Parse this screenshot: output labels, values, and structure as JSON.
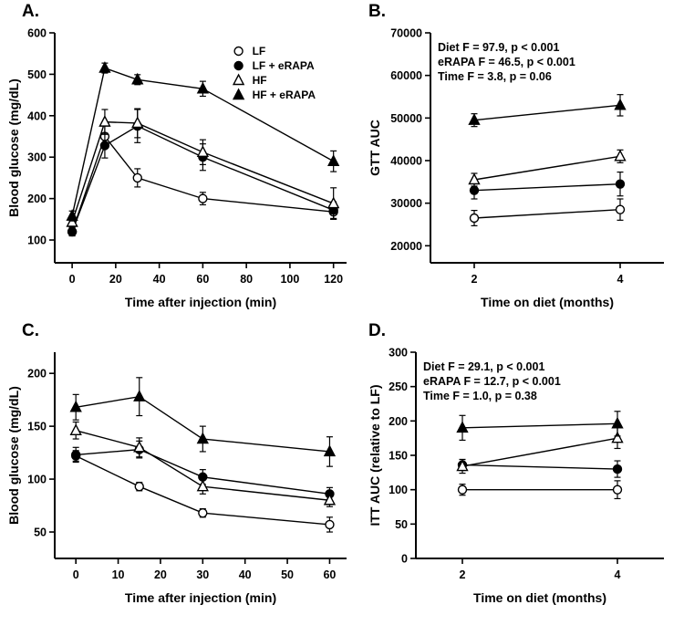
{
  "colors": {
    "foreground": "#000000",
    "background": "#ffffff"
  },
  "panel_labels": {
    "A": "A.",
    "B": "B.",
    "C": "C.",
    "D": "D."
  },
  "chart_data": [
    {
      "id": "A",
      "type": "line",
      "title": "",
      "xlabel": "Time after injection (min)",
      "ylabel": "Blood glucose (mg/dL)",
      "xlim": [
        -8,
        126
      ],
      "ylim": [
        45,
        600
      ],
      "xticks": [
        0,
        20,
        40,
        60,
        80,
        100,
        120
      ],
      "yticks": [
        100,
        200,
        300,
        400,
        500,
        600
      ],
      "grid": false,
      "legend": true,
      "legend_position": "top-right",
      "x": [
        0,
        15,
        30,
        60,
        120
      ],
      "series": [
        {
          "name": "LF",
          "marker": "circle-open",
          "values": [
            120,
            350,
            250,
            200,
            168
          ],
          "errors": [
            10,
            28,
            22,
            15,
            18
          ]
        },
        {
          "name": "LF + eRAPA",
          "marker": "circle-filled",
          "values": [
            120,
            328,
            375,
            300,
            172
          ],
          "errors": [
            10,
            30,
            40,
            32,
            20
          ]
        },
        {
          "name": "HF",
          "marker": "triangle-open",
          "values": [
            143,
            385,
            382,
            312,
            188
          ],
          "errors": [
            12,
            30,
            35,
            30,
            38
          ]
        },
        {
          "name": "HF + eRAPA",
          "marker": "triangle-filled",
          "values": [
            158,
            515,
            487,
            465,
            290
          ],
          "errors": [
            12,
            12,
            12,
            18,
            25
          ]
        }
      ]
    },
    {
      "id": "B",
      "type": "line",
      "title": "",
      "xlabel": "Time on diet (months)",
      "ylabel": "GTT AUC",
      "xlim": [
        1.4,
        4.6
      ],
      "ylim": [
        16000,
        70000
      ],
      "xticks": [
        2,
        4
      ],
      "yticks": [
        20000,
        30000,
        40000,
        50000,
        60000,
        70000
      ],
      "grid": false,
      "legend": false,
      "annotation": [
        "Diet F = 97.9, p < 0.001",
        "eRAPA F = 46.5, p < 0.001",
        "Time F = 3.8, p = 0.06"
      ],
      "x": [
        2,
        4
      ],
      "series": [
        {
          "name": "LF",
          "marker": "circle-open",
          "values": [
            26500,
            28500
          ],
          "errors": [
            1800,
            2500
          ]
        },
        {
          "name": "LF + eRAPA",
          "marker": "circle-filled",
          "values": [
            33000,
            34500
          ],
          "errors": [
            2000,
            2800
          ]
        },
        {
          "name": "HF",
          "marker": "triangle-open",
          "values": [
            35500,
            41000
          ],
          "errors": [
            1500,
            1500
          ]
        },
        {
          "name": "HF + eRAPA",
          "marker": "triangle-filled",
          "values": [
            49500,
            53000
          ],
          "errors": [
            1500,
            2500
          ]
        }
      ]
    },
    {
      "id": "C",
      "type": "line",
      "title": "",
      "xlabel": "Time after injection (min)",
      "ylabel": "Blood glucose (mg/dL)",
      "xlim": [
        -5,
        64
      ],
      "ylim": [
        25,
        220
      ],
      "xticks": [
        0,
        10,
        20,
        30,
        40,
        50,
        60
      ],
      "yticks": [
        50,
        100,
        150,
        200
      ],
      "grid": false,
      "legend": false,
      "x": [
        0,
        15,
        30,
        60
      ],
      "series": [
        {
          "name": "LF",
          "marker": "circle-open",
          "values": [
            122,
            93,
            68,
            57
          ],
          "errors": [
            5,
            4,
            4,
            7
          ]
        },
        {
          "name": "LF + eRAPA",
          "marker": "circle-filled",
          "values": [
            123,
            128,
            102,
            86
          ],
          "errors": [
            7,
            8,
            7,
            6
          ]
        },
        {
          "name": "HF",
          "marker": "triangle-open",
          "values": [
            146,
            130,
            93,
            80
          ],
          "errors": [
            8,
            9,
            7,
            6
          ]
        },
        {
          "name": "HF + eRAPA",
          "marker": "triangle-filled",
          "values": [
            168,
            178,
            138,
            126
          ],
          "errors": [
            12,
            18,
            12,
            14
          ]
        }
      ]
    },
    {
      "id": "D",
      "type": "line",
      "title": "",
      "xlabel": "Time on diet (months)",
      "ylabel": "ITT AUC (relative to LF)",
      "xlim": [
        1.4,
        4.6
      ],
      "ylim": [
        0,
        300
      ],
      "xticks": [
        2,
        4
      ],
      "yticks": [
        0,
        50,
        100,
        150,
        200,
        250,
        300
      ],
      "grid": false,
      "legend": false,
      "annotation": [
        "Diet F = 29.1, p < 0.001",
        "eRAPA F = 12.7, p < 0.001",
        "Time F = 1.0, p = 0.38"
      ],
      "x": [
        2,
        4
      ],
      "series": [
        {
          "name": "LF",
          "marker": "circle-open",
          "values": [
            100,
            100
          ],
          "errors": [
            8,
            13
          ]
        },
        {
          "name": "LF + eRAPA",
          "marker": "circle-filled",
          "values": [
            136,
            130
          ],
          "errors": [
            8,
            12
          ]
        },
        {
          "name": "HF",
          "marker": "triangle-open",
          "values": [
            134,
            175
          ],
          "errors": [
            10,
            15
          ]
        },
        {
          "name": "HF + eRAPA",
          "marker": "triangle-filled",
          "values": [
            190,
            196
          ],
          "errors": [
            18,
            18
          ]
        }
      ]
    }
  ]
}
